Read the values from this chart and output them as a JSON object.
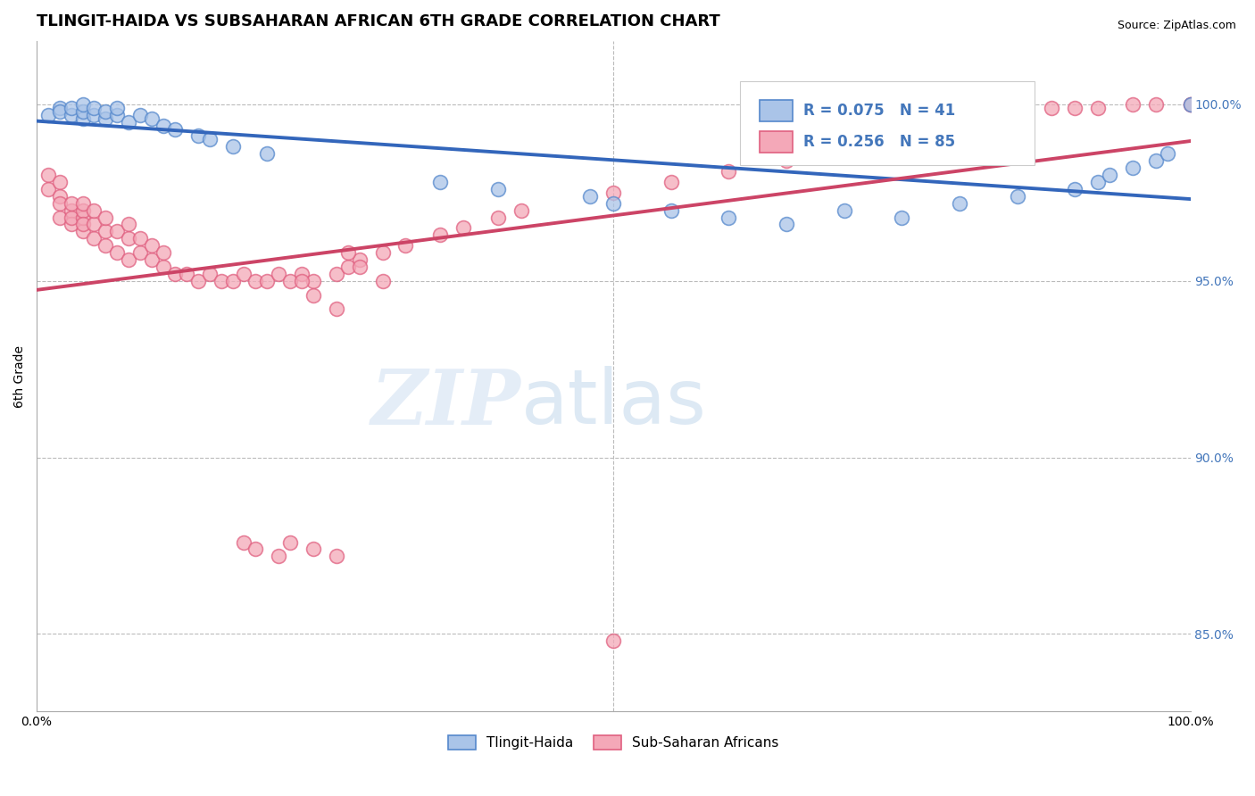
{
  "title": "TLINGIT-HAIDA VS SUBSAHARAN AFRICAN 6TH GRADE CORRELATION CHART",
  "source": "Source: ZipAtlas.com",
  "ylabel": "6th Grade",
  "xlim": [
    0.0,
    1.0
  ],
  "ylim": [
    0.828,
    1.018
  ],
  "yticks": [
    0.85,
    0.9,
    0.95,
    1.0
  ],
  "ytick_labels": [
    "85.0%",
    "90.0%",
    "95.0%",
    "100.0%"
  ],
  "blue_color": "#aac4e8",
  "pink_color": "#f4a8b8",
  "blue_edge_color": "#5588cc",
  "pink_edge_color": "#e06080",
  "blue_line_color": "#3366bb",
  "pink_line_color": "#cc4466",
  "right_axis_color": "#4477bb",
  "grid_color": "#bbbbbb",
  "background_color": "#ffffff",
  "title_fontsize": 13,
  "tick_fontsize": 10,
  "axis_label_fontsize": 10,
  "tlingit_x": [
    0.01,
    0.02,
    0.02,
    0.03,
    0.03,
    0.04,
    0.04,
    0.04,
    0.05,
    0.05,
    0.06,
    0.06,
    0.07,
    0.07,
    0.08,
    0.09,
    0.1,
    0.11,
    0.12,
    0.14,
    0.15,
    0.17,
    0.2,
    0.35,
    0.4,
    0.48,
    0.5,
    0.55,
    0.6,
    0.65,
    0.7,
    0.75,
    0.8,
    0.85,
    0.9,
    0.92,
    0.93,
    0.95,
    0.97,
    0.98,
    1.0
  ],
  "tlingit_y": [
    0.997,
    0.999,
    0.998,
    0.997,
    0.999,
    0.996,
    0.998,
    1.0,
    0.997,
    0.999,
    0.996,
    0.998,
    0.997,
    0.999,
    0.995,
    0.997,
    0.996,
    0.994,
    0.993,
    0.991,
    0.99,
    0.988,
    0.986,
    0.978,
    0.976,
    0.974,
    0.972,
    0.97,
    0.968,
    0.966,
    0.97,
    0.968,
    0.972,
    0.974,
    0.976,
    0.978,
    0.98,
    0.982,
    0.984,
    0.986,
    1.0
  ],
  "subsaharan_x": [
    0.01,
    0.01,
    0.02,
    0.02,
    0.02,
    0.02,
    0.03,
    0.03,
    0.03,
    0.03,
    0.04,
    0.04,
    0.04,
    0.04,
    0.04,
    0.05,
    0.05,
    0.05,
    0.06,
    0.06,
    0.06,
    0.07,
    0.07,
    0.08,
    0.08,
    0.08,
    0.09,
    0.09,
    0.1,
    0.1,
    0.11,
    0.11,
    0.12,
    0.13,
    0.14,
    0.15,
    0.16,
    0.17,
    0.18,
    0.19,
    0.2,
    0.21,
    0.22,
    0.23,
    0.24,
    0.26,
    0.27,
    0.28,
    0.3,
    0.32,
    0.35,
    0.37,
    0.4,
    0.42,
    0.5,
    0.55,
    0.6,
    0.65,
    0.7,
    0.72,
    0.75,
    0.78,
    0.8,
    0.82,
    0.85,
    0.88,
    0.9,
    0.92,
    0.95,
    0.97,
    1.0,
    0.22,
    0.24,
    0.26,
    0.18,
    0.19,
    0.21,
    0.23,
    0.24,
    0.26,
    0.27,
    0.28,
    0.3,
    0.5,
    1.0
  ],
  "subsaharan_y": [
    0.98,
    0.976,
    0.978,
    0.974,
    0.972,
    0.968,
    0.97,
    0.966,
    0.968,
    0.972,
    0.964,
    0.968,
    0.97,
    0.966,
    0.972,
    0.962,
    0.966,
    0.97,
    0.96,
    0.964,
    0.968,
    0.958,
    0.964,
    0.956,
    0.962,
    0.966,
    0.958,
    0.962,
    0.956,
    0.96,
    0.954,
    0.958,
    0.952,
    0.952,
    0.95,
    0.952,
    0.95,
    0.95,
    0.952,
    0.95,
    0.95,
    0.952,
    0.95,
    0.952,
    0.95,
    0.952,
    0.954,
    0.956,
    0.958,
    0.96,
    0.963,
    0.965,
    0.968,
    0.97,
    0.975,
    0.978,
    0.981,
    0.984,
    0.987,
    0.989,
    0.991,
    0.994,
    0.996,
    0.997,
    0.998,
    0.999,
    0.999,
    0.999,
    1.0,
    1.0,
    1.0,
    0.876,
    0.874,
    0.872,
    0.876,
    0.874,
    0.872,
    0.95,
    0.946,
    0.942,
    0.958,
    0.954,
    0.95,
    0.848,
    1.0
  ]
}
